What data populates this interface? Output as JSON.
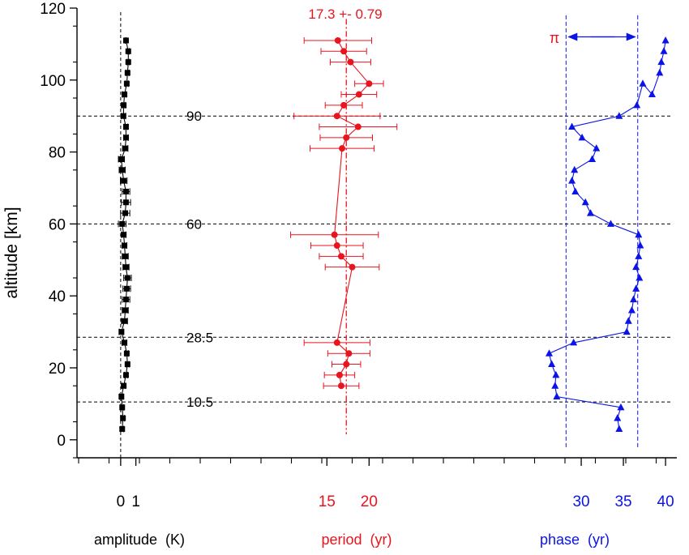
{
  "chart_data": {
    "type": "scatter",
    "ylabel": "altitude [km]",
    "ylim": [
      -5,
      120
    ],
    "yticks": [
      0,
      20,
      40,
      60,
      80,
      100,
      120
    ],
    "reference_lines": [
      {
        "altitude": 90,
        "label": "90"
      },
      {
        "altitude": 60,
        "label": "60"
      },
      {
        "altitude": 28.5,
        "label": "28.5"
      },
      {
        "altitude": 10.5,
        "label": "10.5"
      }
    ],
    "panels": [
      {
        "name": "amplitude",
        "xlabel": "amplitude  (K)",
        "xlim": [
          -2.5,
          4.7
        ],
        "xticks": [
          0,
          1
        ],
        "zero_line": 0,
        "color": "#000000",
        "marker": "square",
        "points": [
          [
            0.35,
            111,
            0.05
          ],
          [
            0.5,
            108,
            0.06
          ],
          [
            0.5,
            105,
            0.08
          ],
          [
            0.45,
            102,
            0.1
          ],
          [
            0.4,
            99,
            0.1
          ],
          [
            0.25,
            96,
            0.12
          ],
          [
            0.2,
            93,
            0.12
          ],
          [
            0.18,
            90,
            0.15
          ],
          [
            0.35,
            87,
            0.12
          ],
          [
            0.35,
            84,
            0.15
          ],
          [
            0.3,
            81,
            0.18
          ],
          [
            0.05,
            78,
            0.2
          ],
          [
            0.1,
            75,
            0.2
          ],
          [
            0.2,
            72,
            0.22
          ],
          [
            0.35,
            69,
            0.25
          ],
          [
            0.35,
            66,
            0.3
          ],
          [
            0.3,
            63,
            0.3
          ],
          [
            0.1,
            60,
            0.25
          ],
          [
            0.2,
            57,
            0.15
          ],
          [
            0.25,
            54,
            0.15
          ],
          [
            0.3,
            51,
            0.2
          ],
          [
            0.35,
            48,
            0.2
          ],
          [
            0.45,
            45,
            0.25
          ],
          [
            0.4,
            42,
            0.25
          ],
          [
            0.35,
            39,
            0.25
          ],
          [
            0.3,
            36,
            0.2
          ],
          [
            0.25,
            33,
            0.2
          ],
          [
            0.05,
            30,
            0.15
          ],
          [
            0.25,
            27,
            0.15
          ],
          [
            0.4,
            24,
            0.1
          ],
          [
            0.45,
            21,
            0.1
          ],
          [
            0.35,
            18,
            0.1
          ],
          [
            0.2,
            15,
            0.12
          ],
          [
            0.05,
            12,
            0.12
          ],
          [
            0.1,
            9,
            0.1
          ],
          [
            0.15,
            6,
            0.1
          ],
          [
            0.1,
            3,
            0.1
          ]
        ]
      },
      {
        "name": "period",
        "xlabel": "period  (yr)",
        "xlim": [
          4.6,
          28.9
        ],
        "xticks": [
          15,
          20
        ],
        "mean_line": 17.3,
        "annotation": "17.3 +- 0.79",
        "color": "#e8141e",
        "marker": "circle",
        "points": [
          [
            16.3,
            111,
            4
          ],
          [
            17.0,
            108,
            2.7
          ],
          [
            17.8,
            105,
            2.4
          ],
          [
            20.0,
            99,
            1.7
          ],
          [
            18.8,
            96,
            2.1
          ],
          [
            17.0,
            93,
            2.2
          ],
          [
            16.2,
            90,
            5.1
          ],
          [
            18.7,
            87,
            4.6
          ],
          [
            17.3,
            84,
            3.1
          ],
          [
            16.8,
            81,
            3.8
          ],
          [
            15.9,
            57,
            5.2
          ],
          [
            16.2,
            54,
            3.1
          ],
          [
            16.7,
            51,
            2.6
          ],
          [
            18.0,
            48,
            3.2
          ],
          [
            16.2,
            27,
            3.9
          ],
          [
            17.6,
            24,
            2.5
          ],
          [
            17.3,
            21,
            1.7
          ],
          [
            16.5,
            18,
            1.8
          ],
          [
            16.7,
            15,
            2.1
          ]
        ]
      },
      {
        "name": "phase",
        "xlabel": "phase  (yr)",
        "xlim": [
          10.1,
          42.3
        ],
        "xticks": [
          30,
          35,
          40
        ],
        "pi_lines": [
          28.2,
          36.7
        ],
        "pi_label": "π",
        "color": "#0a14e6",
        "marker": "triangle",
        "points": [
          [
            40.0,
            111
          ],
          [
            39.8,
            108
          ],
          [
            39.5,
            105
          ],
          [
            39.3,
            102
          ],
          [
            38.4,
            96
          ],
          [
            37.3,
            99
          ],
          [
            36.6,
            93
          ],
          [
            34.5,
            90
          ],
          [
            28.9,
            87
          ],
          [
            30.1,
            84
          ],
          [
            31.8,
            81
          ],
          [
            31.3,
            78
          ],
          [
            29.2,
            75
          ],
          [
            28.9,
            72
          ],
          [
            29.3,
            69
          ],
          [
            30.5,
            66
          ],
          [
            31.1,
            63
          ],
          [
            33.5,
            60
          ],
          [
            36.8,
            57
          ],
          [
            37.0,
            54
          ],
          [
            36.8,
            51
          ],
          [
            36.5,
            48
          ],
          [
            36.9,
            45
          ],
          [
            36.5,
            42
          ],
          [
            36.2,
            39
          ],
          [
            36.0,
            36
          ],
          [
            35.6,
            33
          ],
          [
            35.4,
            30
          ],
          [
            29.1,
            27
          ],
          [
            26.2,
            24
          ],
          [
            26.5,
            21
          ],
          [
            27.0,
            18
          ],
          [
            26.9,
            15
          ],
          [
            27.1,
            12
          ],
          [
            34.7,
            9
          ],
          [
            34.3,
            6
          ],
          [
            34.5,
            3
          ]
        ]
      }
    ]
  }
}
